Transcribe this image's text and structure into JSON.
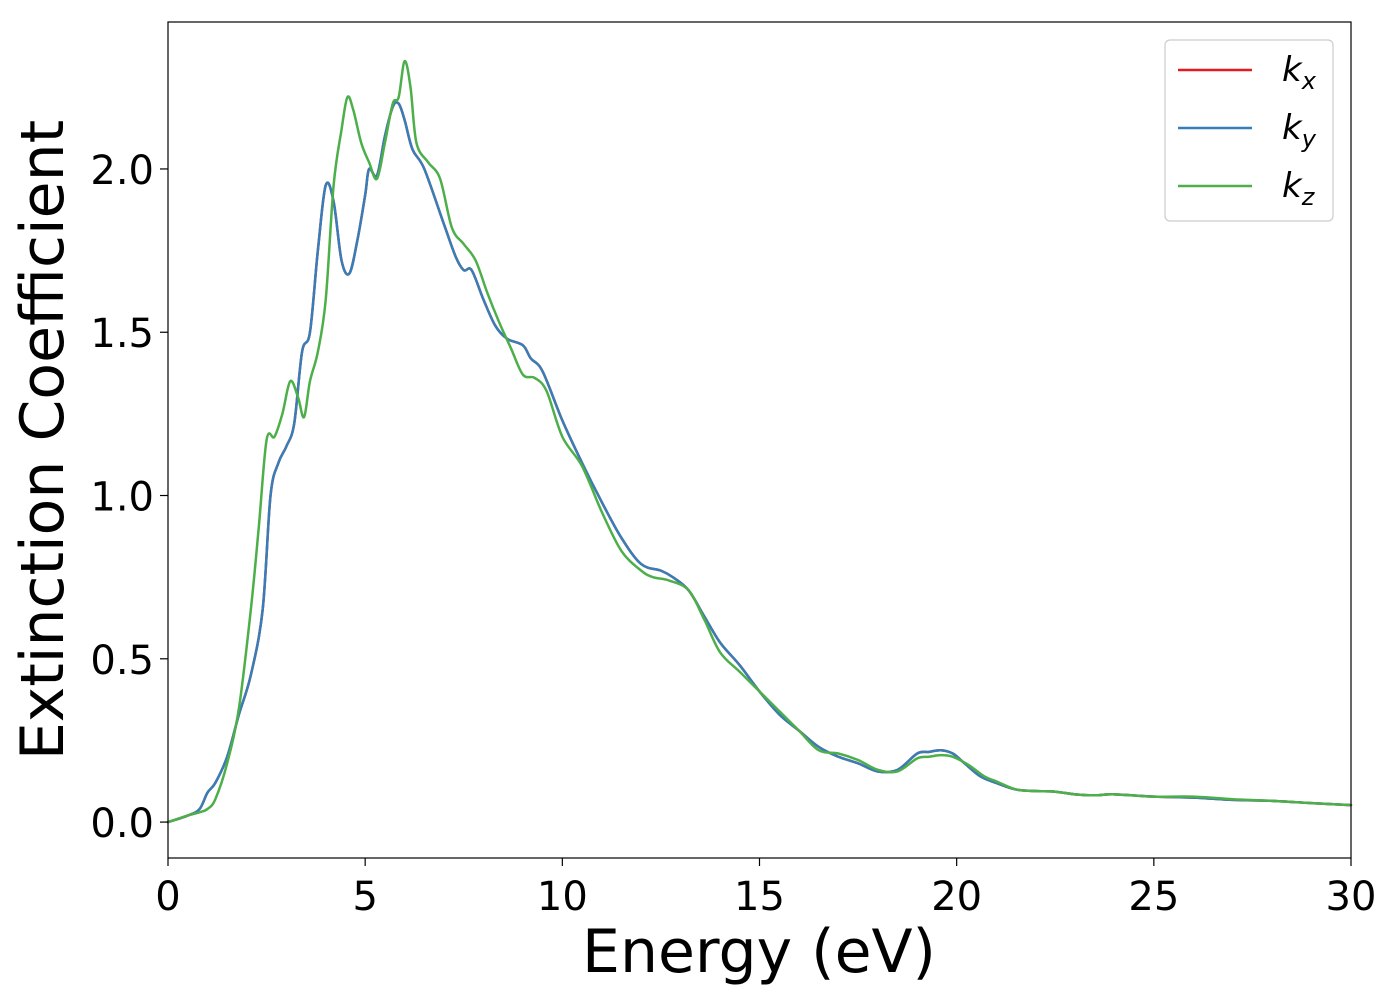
{
  "chart_data": {
    "type": "line",
    "xlabel": "Energy (eV)",
    "ylabel": "Extinction Coefficient",
    "xlim": [
      0,
      30
    ],
    "ylim": [
      -0.11,
      2.45
    ],
    "xticks": [
      0,
      5,
      10,
      15,
      20,
      25,
      30
    ],
    "xtick_labels": [
      "0",
      "5",
      "10",
      "15",
      "20",
      "25",
      "30"
    ],
    "yticks": [
      0.0,
      0.5,
      1.0,
      1.5,
      2.0
    ],
    "ytick_labels": [
      "0.0",
      "0.5",
      "1.0",
      "1.5",
      "2.0"
    ],
    "grid": false,
    "legend": {
      "position": "top-right"
    },
    "series": [
      {
        "name": "k_x",
        "color": "#e41a1c",
        "points": [
          [
            0,
            0.0
          ],
          [
            0.5,
            0.02
          ],
          [
            0.8,
            0.04
          ],
          [
            1.0,
            0.09
          ],
          [
            1.2,
            0.12
          ],
          [
            1.5,
            0.2
          ],
          [
            1.8,
            0.33
          ],
          [
            2.1,
            0.45
          ],
          [
            2.4,
            0.65
          ],
          [
            2.6,
            1.0
          ],
          [
            2.8,
            1.1
          ],
          [
            3.0,
            1.15
          ],
          [
            3.2,
            1.22
          ],
          [
            3.4,
            1.44
          ],
          [
            3.6,
            1.5
          ],
          [
            3.8,
            1.75
          ],
          [
            4.0,
            1.95
          ],
          [
            4.2,
            1.9
          ],
          [
            4.4,
            1.72
          ],
          [
            4.6,
            1.68
          ],
          [
            4.8,
            1.78
          ],
          [
            5.0,
            1.92
          ],
          [
            5.1,
            2.0
          ],
          [
            5.3,
            1.98
          ],
          [
            5.5,
            2.1
          ],
          [
            5.7,
            2.19
          ],
          [
            5.85,
            2.2
          ],
          [
            6.0,
            2.15
          ],
          [
            6.2,
            2.06
          ],
          [
            6.5,
            2.0
          ],
          [
            7.0,
            1.83
          ],
          [
            7.3,
            1.73
          ],
          [
            7.5,
            1.69
          ],
          [
            7.7,
            1.69
          ],
          [
            8.0,
            1.6
          ],
          [
            8.3,
            1.52
          ],
          [
            8.6,
            1.48
          ],
          [
            9.0,
            1.46
          ],
          [
            9.2,
            1.42
          ],
          [
            9.5,
            1.38
          ],
          [
            10.0,
            1.23
          ],
          [
            10.5,
            1.1
          ],
          [
            11.0,
            0.98
          ],
          [
            11.5,
            0.87
          ],
          [
            12.0,
            0.79
          ],
          [
            12.5,
            0.77
          ],
          [
            12.8,
            0.75
          ],
          [
            13.2,
            0.71
          ],
          [
            13.6,
            0.63
          ],
          [
            14.0,
            0.55
          ],
          [
            14.5,
            0.48
          ],
          [
            15.0,
            0.4
          ],
          [
            15.5,
            0.33
          ],
          [
            16.0,
            0.28
          ],
          [
            16.5,
            0.23
          ],
          [
            17.0,
            0.2
          ],
          [
            17.5,
            0.18
          ],
          [
            18.0,
            0.155
          ],
          [
            18.5,
            0.16
          ],
          [
            19.0,
            0.21
          ],
          [
            19.3,
            0.215
          ],
          [
            19.6,
            0.22
          ],
          [
            19.9,
            0.21
          ],
          [
            20.2,
            0.18
          ],
          [
            20.6,
            0.14
          ],
          [
            21.0,
            0.12
          ],
          [
            21.5,
            0.1
          ],
          [
            22.0,
            0.095
          ],
          [
            22.5,
            0.093
          ],
          [
            23.0,
            0.085
          ],
          [
            23.5,
            0.082
          ],
          [
            24.0,
            0.085
          ],
          [
            25.0,
            0.078
          ],
          [
            26.0,
            0.075
          ],
          [
            27.0,
            0.068
          ],
          [
            28.0,
            0.065
          ],
          [
            29.0,
            0.058
          ],
          [
            30.0,
            0.052
          ]
        ]
      },
      {
        "name": "k_y",
        "color": "#377eb8",
        "points": [
          [
            0,
            0.0
          ],
          [
            0.5,
            0.02
          ],
          [
            0.8,
            0.04
          ],
          [
            1.0,
            0.09
          ],
          [
            1.2,
            0.12
          ],
          [
            1.5,
            0.2
          ],
          [
            1.8,
            0.33
          ],
          [
            2.1,
            0.45
          ],
          [
            2.4,
            0.65
          ],
          [
            2.6,
            1.0
          ],
          [
            2.8,
            1.1
          ],
          [
            3.0,
            1.15
          ],
          [
            3.2,
            1.22
          ],
          [
            3.4,
            1.44
          ],
          [
            3.6,
            1.5
          ],
          [
            3.8,
            1.75
          ],
          [
            4.0,
            1.95
          ],
          [
            4.2,
            1.9
          ],
          [
            4.4,
            1.72
          ],
          [
            4.6,
            1.68
          ],
          [
            4.8,
            1.78
          ],
          [
            5.0,
            1.92
          ],
          [
            5.1,
            2.0
          ],
          [
            5.3,
            1.98
          ],
          [
            5.5,
            2.1
          ],
          [
            5.7,
            2.19
          ],
          [
            5.85,
            2.2
          ],
          [
            6.0,
            2.15
          ],
          [
            6.2,
            2.06
          ],
          [
            6.5,
            2.0
          ],
          [
            7.0,
            1.83
          ],
          [
            7.3,
            1.73
          ],
          [
            7.5,
            1.69
          ],
          [
            7.7,
            1.69
          ],
          [
            8.0,
            1.6
          ],
          [
            8.3,
            1.52
          ],
          [
            8.6,
            1.48
          ],
          [
            9.0,
            1.46
          ],
          [
            9.2,
            1.42
          ],
          [
            9.5,
            1.38
          ],
          [
            10.0,
            1.23
          ],
          [
            10.5,
            1.1
          ],
          [
            11.0,
            0.98
          ],
          [
            11.5,
            0.87
          ],
          [
            12.0,
            0.79
          ],
          [
            12.5,
            0.77
          ],
          [
            12.8,
            0.75
          ],
          [
            13.2,
            0.71
          ],
          [
            13.6,
            0.63
          ],
          [
            14.0,
            0.55
          ],
          [
            14.5,
            0.48
          ],
          [
            15.0,
            0.4
          ],
          [
            15.5,
            0.33
          ],
          [
            16.0,
            0.28
          ],
          [
            16.5,
            0.23
          ],
          [
            17.0,
            0.2
          ],
          [
            17.5,
            0.18
          ],
          [
            18.0,
            0.155
          ],
          [
            18.5,
            0.16
          ],
          [
            19.0,
            0.21
          ],
          [
            19.3,
            0.215
          ],
          [
            19.6,
            0.22
          ],
          [
            19.9,
            0.21
          ],
          [
            20.2,
            0.18
          ],
          [
            20.6,
            0.14
          ],
          [
            21.0,
            0.12
          ],
          [
            21.5,
            0.1
          ],
          [
            22.0,
            0.095
          ],
          [
            22.5,
            0.093
          ],
          [
            23.0,
            0.085
          ],
          [
            23.5,
            0.082
          ],
          [
            24.0,
            0.085
          ],
          [
            25.0,
            0.078
          ],
          [
            26.0,
            0.075
          ],
          [
            27.0,
            0.068
          ],
          [
            28.0,
            0.065
          ],
          [
            29.0,
            0.058
          ],
          [
            30.0,
            0.052
          ]
        ]
      },
      {
        "name": "k_z",
        "color": "#4daf4a",
        "points": [
          [
            0,
            0.0
          ],
          [
            0.5,
            0.02
          ],
          [
            0.8,
            0.03
          ],
          [
            1.0,
            0.04
          ],
          [
            1.2,
            0.07
          ],
          [
            1.5,
            0.18
          ],
          [
            1.8,
            0.35
          ],
          [
            2.1,
            0.65
          ],
          [
            2.3,
            0.9
          ],
          [
            2.5,
            1.17
          ],
          [
            2.7,
            1.18
          ],
          [
            2.9,
            1.25
          ],
          [
            3.1,
            1.35
          ],
          [
            3.3,
            1.3
          ],
          [
            3.45,
            1.24
          ],
          [
            3.6,
            1.35
          ],
          [
            3.8,
            1.44
          ],
          [
            4.0,
            1.6
          ],
          [
            4.2,
            1.95
          ],
          [
            4.4,
            2.12
          ],
          [
            4.55,
            2.22
          ],
          [
            4.7,
            2.18
          ],
          [
            4.9,
            2.08
          ],
          [
            5.1,
            2.02
          ],
          [
            5.3,
            1.97
          ],
          [
            5.5,
            2.08
          ],
          [
            5.7,
            2.2
          ],
          [
            5.85,
            2.22
          ],
          [
            6.0,
            2.33
          ],
          [
            6.15,
            2.25
          ],
          [
            6.3,
            2.08
          ],
          [
            6.6,
            2.02
          ],
          [
            6.9,
            1.97
          ],
          [
            7.2,
            1.82
          ],
          [
            7.5,
            1.77
          ],
          [
            7.8,
            1.72
          ],
          [
            8.1,
            1.62
          ],
          [
            8.4,
            1.53
          ],
          [
            8.7,
            1.45
          ],
          [
            9.0,
            1.37
          ],
          [
            9.3,
            1.36
          ],
          [
            9.6,
            1.32
          ],
          [
            10.0,
            1.18
          ],
          [
            10.5,
            1.09
          ],
          [
            11.0,
            0.95
          ],
          [
            11.5,
            0.83
          ],
          [
            12.0,
            0.77
          ],
          [
            12.3,
            0.75
          ],
          [
            12.7,
            0.74
          ],
          [
            13.2,
            0.71
          ],
          [
            13.6,
            0.62
          ],
          [
            14.0,
            0.52
          ],
          [
            14.5,
            0.46
          ],
          [
            15.0,
            0.4
          ],
          [
            15.5,
            0.34
          ],
          [
            16.0,
            0.28
          ],
          [
            16.5,
            0.22
          ],
          [
            17.0,
            0.21
          ],
          [
            17.5,
            0.19
          ],
          [
            18.0,
            0.16
          ],
          [
            18.5,
            0.155
          ],
          [
            19.0,
            0.195
          ],
          [
            19.3,
            0.2
          ],
          [
            19.6,
            0.205
          ],
          [
            19.9,
            0.2
          ],
          [
            20.3,
            0.175
          ],
          [
            20.7,
            0.14
          ],
          [
            21.0,
            0.125
          ],
          [
            21.5,
            0.1
          ],
          [
            22.0,
            0.095
          ],
          [
            22.5,
            0.093
          ],
          [
            23.0,
            0.085
          ],
          [
            23.5,
            0.082
          ],
          [
            24.0,
            0.085
          ],
          [
            25.0,
            0.078
          ],
          [
            26.0,
            0.078
          ],
          [
            27.0,
            0.07
          ],
          [
            28.0,
            0.065
          ],
          [
            29.0,
            0.058
          ],
          [
            30.0,
            0.052
          ]
        ]
      }
    ]
  }
}
